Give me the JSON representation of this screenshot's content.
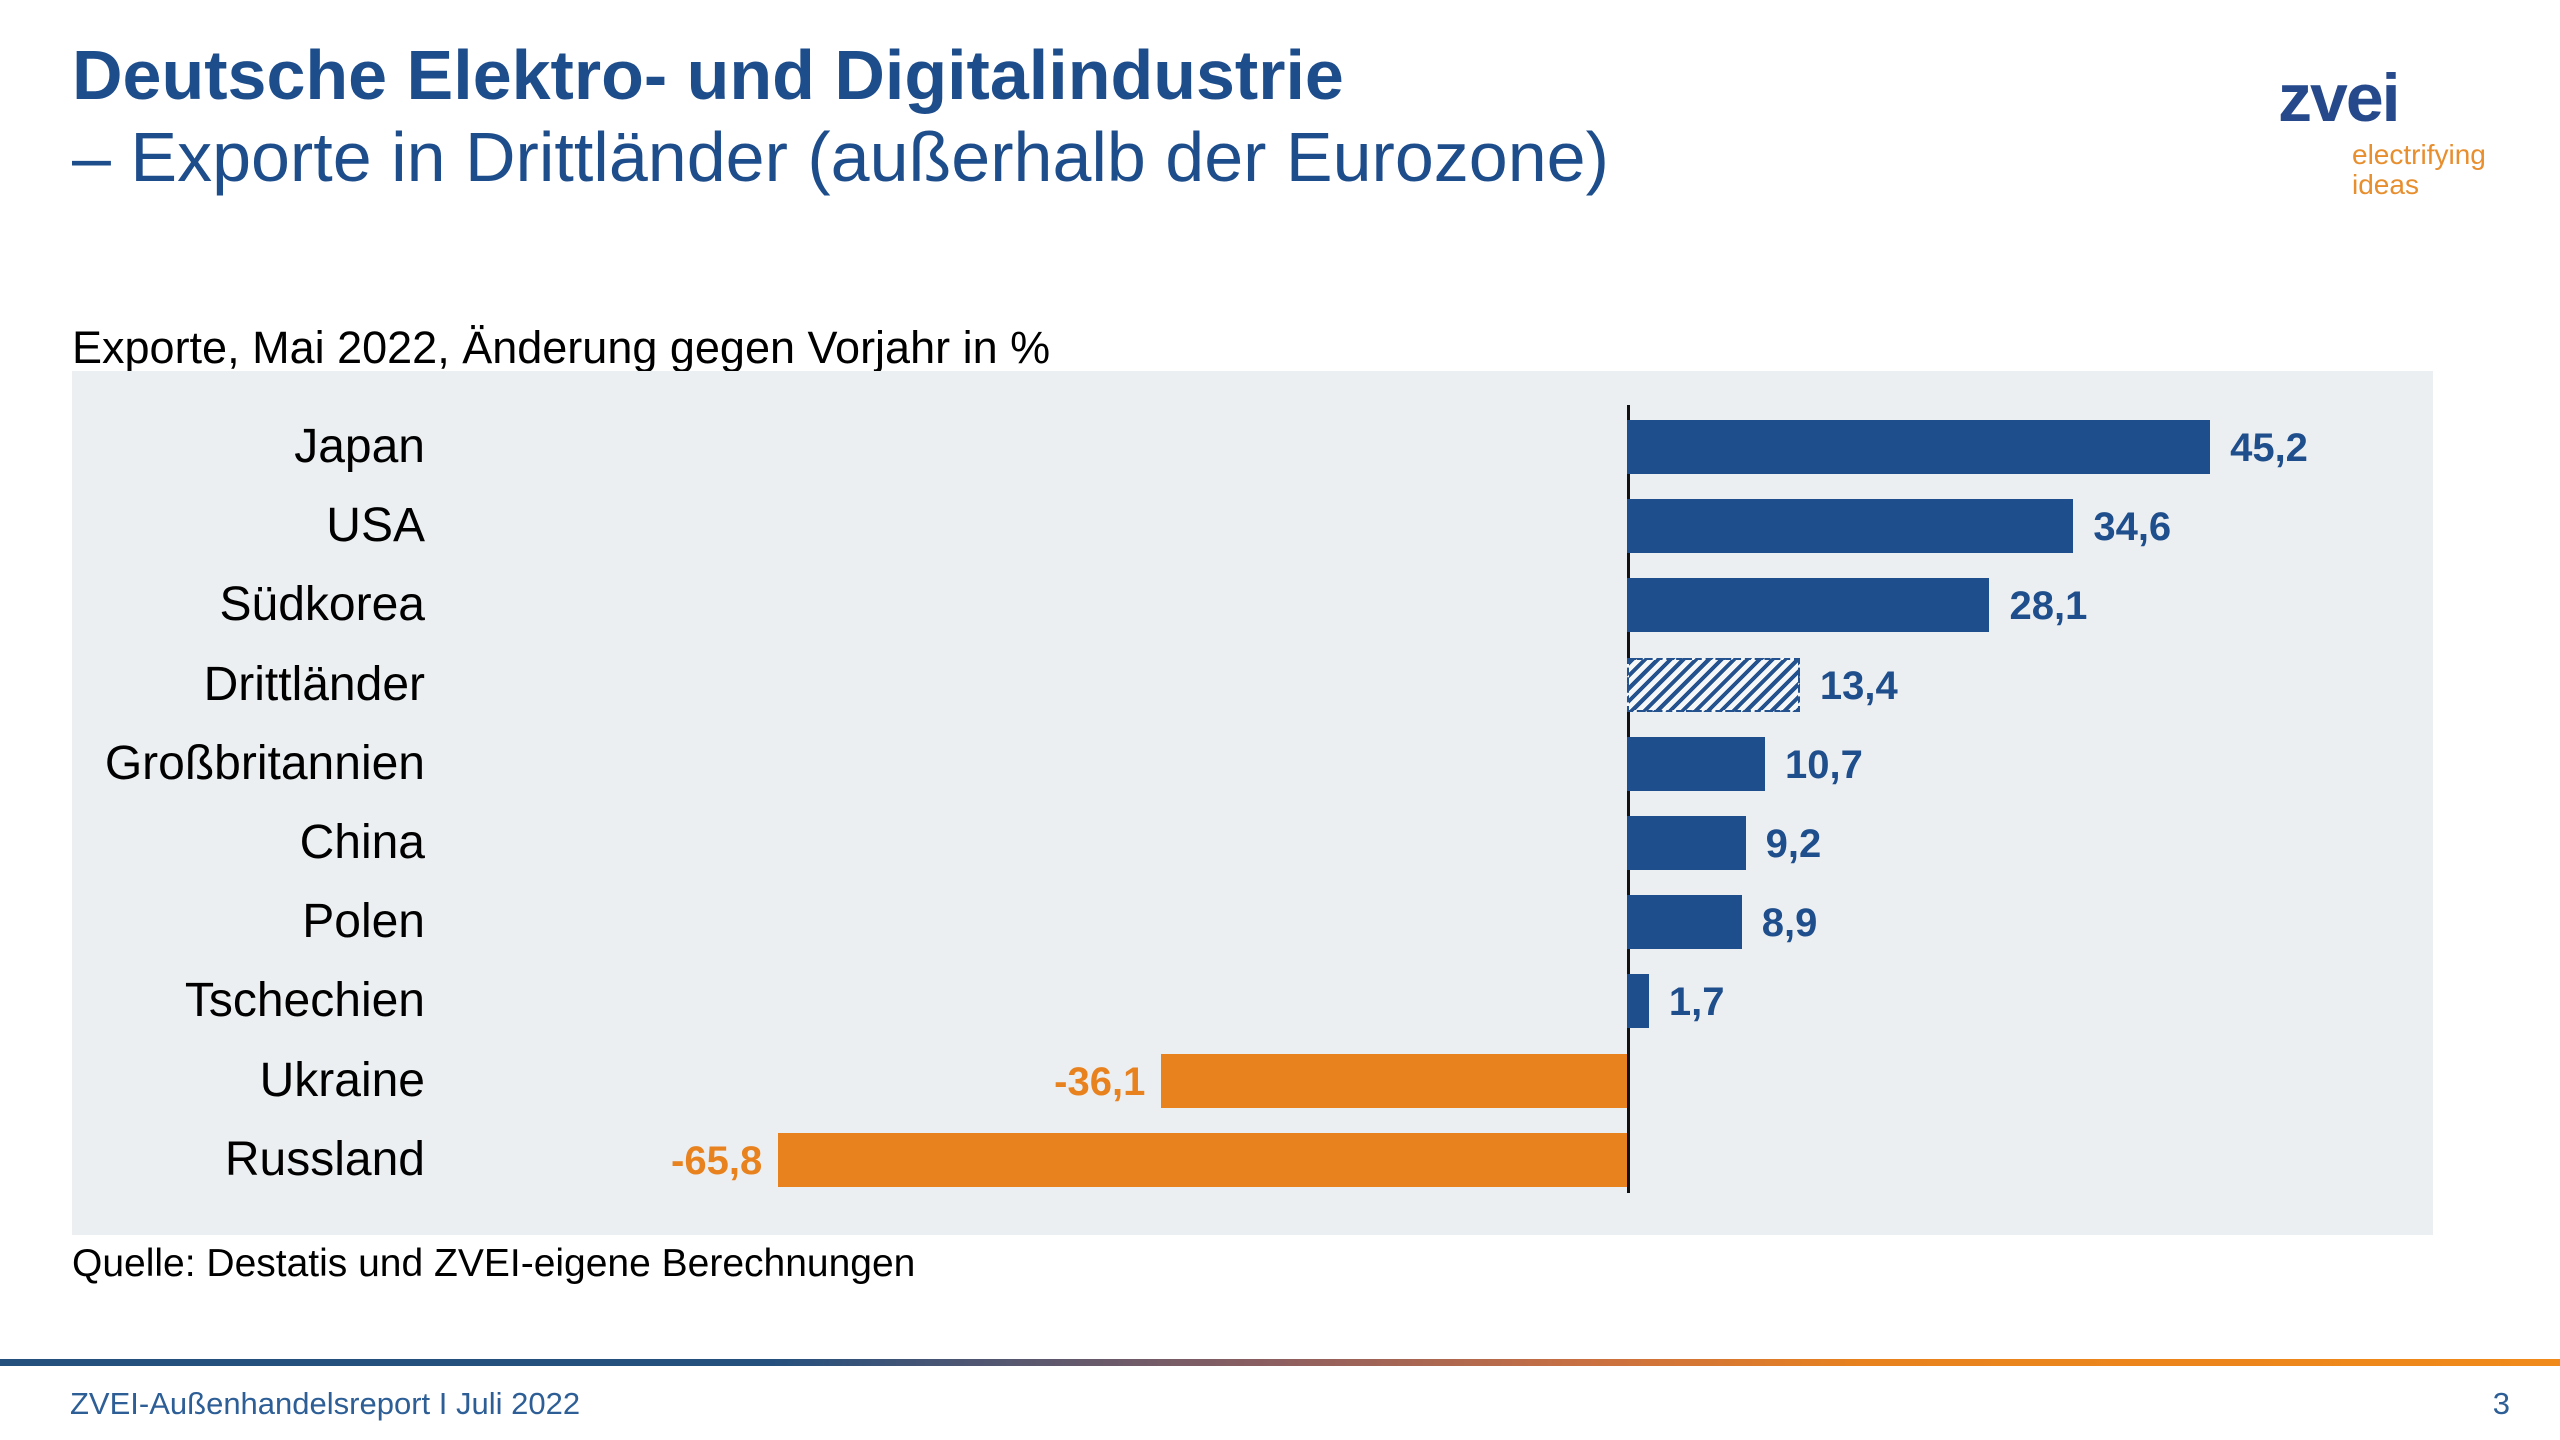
{
  "header": {
    "title_line1": "Deutsche Elektro- und Digitalindustrie",
    "title_line2": "– Exporte in Drittländer (außerhalb der Eurozone)",
    "logo": {
      "text": "zvei",
      "tagline_line1": "electrifying",
      "tagline_line2": "ideas"
    }
  },
  "subtitle": "Exporte, Mai 2022, Änderung gegen Vorjahr in %",
  "chart_data": {
    "type": "bar",
    "orientation": "horizontal",
    "title": "Exporte, Mai 2022, Änderung gegen Vorjahr in %",
    "xlabel": "",
    "ylabel": "",
    "categories": [
      "Japan",
      "USA",
      "Südkorea",
      "Drittländer",
      "Großbritannien",
      "China",
      "Polen",
      "Tschechien",
      "Ukraine",
      "Russland"
    ],
    "values": [
      45.2,
      34.6,
      28.1,
      13.4,
      10.7,
      9.2,
      8.9,
      1.7,
      -36.1,
      -65.8
    ],
    "value_labels": [
      "45,2",
      "34,6",
      "28,1",
      "13,4",
      "10,7",
      "9,2",
      "8,9",
      "1,7",
      "-36,1",
      "-65,8"
    ],
    "highlight_category": "Drittländer",
    "highlight_style": "hatched",
    "positive_color": "#1F4E8C",
    "negative_color": "#E8821E",
    "plot_background": "#ECEFF1",
    "axis_baseline": 0,
    "xlim": [
      -75,
      55
    ],
    "grid": false,
    "legend": false
  },
  "source": "Quelle: Destatis und ZVEI-eigene Berechnungen",
  "footer": {
    "report": "ZVEI-Außenhandelsreport I Juli 2022",
    "page": "3"
  },
  "colors": {
    "title_blue": "#1E4D8C",
    "bar_blue": "#1F4E8C",
    "bar_orange": "#E8821E",
    "logo_blue": "#26498C",
    "logo_orange": "#E78E2E",
    "footer_text_blue": "#2D5E96",
    "chart_background": "#ECEFF1"
  }
}
